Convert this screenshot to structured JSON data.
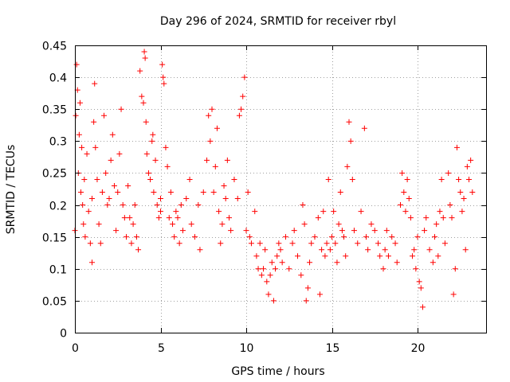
{
  "chart_data": {
    "type": "scatter",
    "title": "Day 296 of 2024, SRMTID for receiver rbyl",
    "xlabel": "GPS time / hours",
    "ylabel": "SRMTID / TECUs",
    "xlim": [
      0,
      24
    ],
    "ylim": [
      0,
      0.45
    ],
    "xticks": [
      0,
      5,
      10,
      15,
      20
    ],
    "xtick_labels": [
      "0",
      "5",
      "10",
      "15",
      "20"
    ],
    "yticks": [
      0,
      0.05,
      0.1,
      0.15,
      0.2,
      0.25,
      0.3,
      0.35,
      0.4,
      0.45
    ],
    "ytick_labels": [
      "0",
      "0.05",
      "0.1",
      "0.15",
      "0.2",
      "0.25",
      "0.3",
      "0.35",
      "0.4",
      "0.45"
    ],
    "grid": true,
    "marker": "+",
    "color": "#ff0000",
    "series": [
      {
        "name": "SRMTID",
        "points": [
          [
            0.0,
            0.16
          ],
          [
            0.05,
            0.34
          ],
          [
            0.1,
            0.42
          ],
          [
            0.15,
            0.38
          ],
          [
            0.2,
            0.25
          ],
          [
            0.25,
            0.31
          ],
          [
            0.3,
            0.36
          ],
          [
            0.35,
            0.22
          ],
          [
            0.4,
            0.29
          ],
          [
            0.45,
            0.2
          ],
          [
            0.5,
            0.17
          ],
          [
            0.55,
            0.24
          ],
          [
            0.6,
            0.15
          ],
          [
            0.7,
            0.28
          ],
          [
            0.8,
            0.19
          ],
          [
            0.9,
            0.14
          ],
          [
            1.0,
            0.21
          ],
          [
            1.0,
            0.11
          ],
          [
            1.1,
            0.33
          ],
          [
            1.15,
            0.39
          ],
          [
            1.2,
            0.29
          ],
          [
            1.3,
            0.24
          ],
          [
            1.4,
            0.17
          ],
          [
            1.5,
            0.14
          ],
          [
            1.6,
            0.22
          ],
          [
            1.7,
            0.34
          ],
          [
            1.8,
            0.25
          ],
          [
            1.9,
            0.2
          ],
          [
            2.0,
            0.21
          ],
          [
            2.1,
            0.27
          ],
          [
            2.2,
            0.31
          ],
          [
            2.3,
            0.23
          ],
          [
            2.4,
            0.16
          ],
          [
            2.5,
            0.22
          ],
          [
            2.6,
            0.28
          ],
          [
            2.7,
            0.35
          ],
          [
            2.8,
            0.2
          ],
          [
            2.9,
            0.18
          ],
          [
            3.0,
            0.15
          ],
          [
            3.1,
            0.23
          ],
          [
            3.2,
            0.18
          ],
          [
            3.3,
            0.14
          ],
          [
            3.4,
            0.17
          ],
          [
            3.5,
            0.2
          ],
          [
            3.6,
            0.15
          ],
          [
            3.7,
            0.13
          ],
          [
            3.8,
            0.41
          ],
          [
            3.9,
            0.37
          ],
          [
            4.0,
            0.36
          ],
          [
            4.05,
            0.44
          ],
          [
            4.1,
            0.43
          ],
          [
            4.15,
            0.33
          ],
          [
            4.2,
            0.28
          ],
          [
            4.3,
            0.25
          ],
          [
            4.4,
            0.24
          ],
          [
            4.5,
            0.3
          ],
          [
            4.55,
            0.31
          ],
          [
            4.6,
            0.22
          ],
          [
            4.7,
            0.27
          ],
          [
            4.8,
            0.2
          ],
          [
            4.9,
            0.18
          ],
          [
            5.0,
            0.21
          ],
          [
            5.0,
            0.19
          ],
          [
            5.1,
            0.42
          ],
          [
            5.15,
            0.4
          ],
          [
            5.2,
            0.39
          ],
          [
            5.3,
            0.29
          ],
          [
            5.4,
            0.26
          ],
          [
            5.5,
            0.18
          ],
          [
            5.6,
            0.22
          ],
          [
            5.7,
            0.17
          ],
          [
            5.8,
            0.15
          ],
          [
            5.9,
            0.19
          ],
          [
            6.0,
            0.18
          ],
          [
            6.1,
            0.14
          ],
          [
            6.2,
            0.2
          ],
          [
            6.3,
            0.16
          ],
          [
            6.5,
            0.21
          ],
          [
            6.7,
            0.24
          ],
          [
            6.8,
            0.17
          ],
          [
            7.0,
            0.15
          ],
          [
            7.2,
            0.2
          ],
          [
            7.3,
            0.13
          ],
          [
            7.5,
            0.22
          ],
          [
            7.7,
            0.27
          ],
          [
            7.8,
            0.34
          ],
          [
            7.9,
            0.3
          ],
          [
            8.0,
            0.35
          ],
          [
            8.1,
            0.22
          ],
          [
            8.2,
            0.26
          ],
          [
            8.3,
            0.32
          ],
          [
            8.4,
            0.19
          ],
          [
            8.5,
            0.14
          ],
          [
            8.6,
            0.17
          ],
          [
            8.7,
            0.23
          ],
          [
            8.8,
            0.21
          ],
          [
            8.9,
            0.27
          ],
          [
            9.0,
            0.18
          ],
          [
            9.1,
            0.16
          ],
          [
            9.3,
            0.24
          ],
          [
            9.5,
            0.21
          ],
          [
            9.6,
            0.34
          ],
          [
            9.7,
            0.35
          ],
          [
            9.8,
            0.37
          ],
          [
            9.9,
            0.4
          ],
          [
            10.0,
            0.16
          ],
          [
            10.1,
            0.22
          ],
          [
            10.2,
            0.15
          ],
          [
            10.3,
            0.14
          ],
          [
            10.5,
            0.19
          ],
          [
            10.6,
            0.12
          ],
          [
            10.7,
            0.1
          ],
          [
            10.8,
            0.14
          ],
          [
            10.9,
            0.09
          ],
          [
            11.0,
            0.1
          ],
          [
            11.1,
            0.13
          ],
          [
            11.2,
            0.08
          ],
          [
            11.3,
            0.06
          ],
          [
            11.4,
            0.09
          ],
          [
            11.5,
            0.11
          ],
          [
            11.6,
            0.05
          ],
          [
            11.7,
            0.1
          ],
          [
            11.8,
            0.12
          ],
          [
            11.9,
            0.14
          ],
          [
            12.0,
            0.13
          ],
          [
            12.1,
            0.11
          ],
          [
            12.3,
            0.15
          ],
          [
            12.5,
            0.1
          ],
          [
            12.7,
            0.14
          ],
          [
            12.8,
            0.16
          ],
          [
            13.0,
            0.12
          ],
          [
            13.2,
            0.09
          ],
          [
            13.3,
            0.2
          ],
          [
            13.4,
            0.17
          ],
          [
            13.5,
            0.05
          ],
          [
            13.6,
            0.07
          ],
          [
            13.7,
            0.11
          ],
          [
            13.8,
            0.14
          ],
          [
            14.0,
            0.15
          ],
          [
            14.2,
            0.18
          ],
          [
            14.3,
            0.06
          ],
          [
            14.4,
            0.13
          ],
          [
            14.5,
            0.19
          ],
          [
            14.6,
            0.12
          ],
          [
            14.7,
            0.14
          ],
          [
            14.8,
            0.24
          ],
          [
            14.9,
            0.13
          ],
          [
            15.0,
            0.15
          ],
          [
            15.1,
            0.19
          ],
          [
            15.2,
            0.14
          ],
          [
            15.3,
            0.11
          ],
          [
            15.4,
            0.17
          ],
          [
            15.5,
            0.22
          ],
          [
            15.6,
            0.16
          ],
          [
            15.7,
            0.15
          ],
          [
            15.8,
            0.12
          ],
          [
            15.9,
            0.26
          ],
          [
            16.0,
            0.33
          ],
          [
            16.1,
            0.3
          ],
          [
            16.2,
            0.24
          ],
          [
            16.3,
            0.16
          ],
          [
            16.5,
            0.14
          ],
          [
            16.7,
            0.19
          ],
          [
            16.9,
            0.32
          ],
          [
            17.0,
            0.15
          ],
          [
            17.1,
            0.13
          ],
          [
            17.3,
            0.17
          ],
          [
            17.5,
            0.16
          ],
          [
            17.7,
            0.14
          ],
          [
            17.8,
            0.12
          ],
          [
            18.0,
            0.1
          ],
          [
            18.1,
            0.13
          ],
          [
            18.2,
            0.16
          ],
          [
            18.3,
            0.12
          ],
          [
            18.5,
            0.15
          ],
          [
            18.7,
            0.14
          ],
          [
            18.8,
            0.11
          ],
          [
            19.0,
            0.2
          ],
          [
            19.1,
            0.25
          ],
          [
            19.2,
            0.22
          ],
          [
            19.3,
            0.19
          ],
          [
            19.4,
            0.24
          ],
          [
            19.5,
            0.21
          ],
          [
            19.6,
            0.18
          ],
          [
            19.7,
            0.12
          ],
          [
            19.8,
            0.13
          ],
          [
            19.9,
            0.1
          ],
          [
            20.0,
            0.15
          ],
          [
            20.1,
            0.08
          ],
          [
            20.2,
            0.07
          ],
          [
            20.3,
            0.04
          ],
          [
            20.4,
            0.16
          ],
          [
            20.5,
            0.18
          ],
          [
            20.7,
            0.13
          ],
          [
            20.9,
            0.11
          ],
          [
            21.0,
            0.15
          ],
          [
            21.1,
            0.17
          ],
          [
            21.2,
            0.12
          ],
          [
            21.3,
            0.19
          ],
          [
            21.4,
            0.24
          ],
          [
            21.5,
            0.18
          ],
          [
            21.6,
            0.14
          ],
          [
            21.8,
            0.25
          ],
          [
            21.9,
            0.2
          ],
          [
            22.0,
            0.18
          ],
          [
            22.1,
            0.06
          ],
          [
            22.2,
            0.1
          ],
          [
            22.3,
            0.29
          ],
          [
            22.4,
            0.24
          ],
          [
            22.5,
            0.22
          ],
          [
            22.6,
            0.19
          ],
          [
            22.7,
            0.21
          ],
          [
            22.8,
            0.13
          ],
          [
            22.9,
            0.26
          ],
          [
            23.0,
            0.24
          ],
          [
            23.1,
            0.27
          ],
          [
            23.2,
            0.22
          ]
        ]
      }
    ]
  }
}
